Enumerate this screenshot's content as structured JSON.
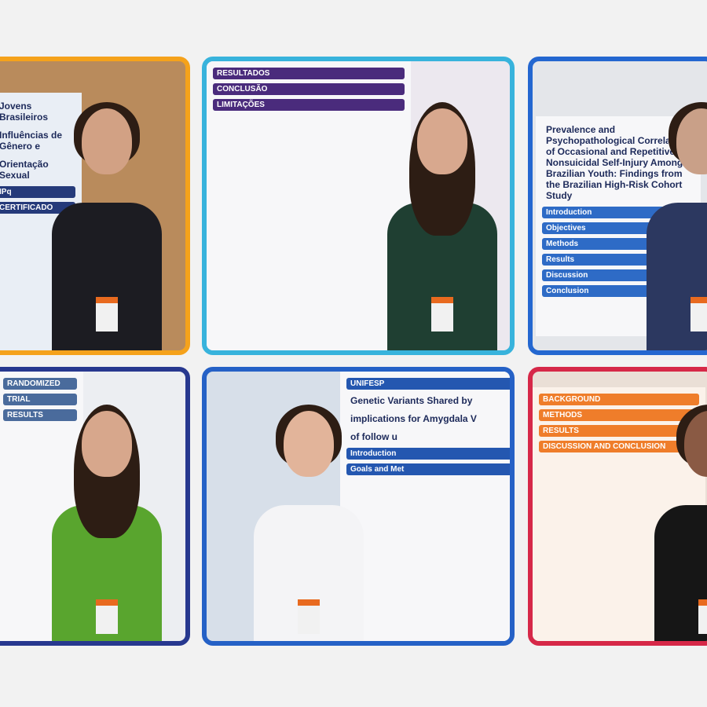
{
  "panels": [
    {
      "texts": [
        "Jovens Brasileiros",
        "Influências de Gênero e",
        "Orientação Sexual",
        "IPq",
        "CERTIFICADO"
      ]
    },
    {
      "texts": [
        "RESULTADOS",
        "CONCLUSÃO",
        "LIMITAÇÕES"
      ]
    },
    {
      "texts": [
        "Prevalence and Psychopathological Correlates of Occasional and Repetitive Nonsuicidal Self-Injury Among Brazilian Youth: Findings from the Brazilian High-Risk Cohort Study",
        "Introduction",
        "Objectives",
        "Methods",
        "Results",
        "Discussion",
        "Conclusion"
      ]
    },
    {
      "texts": [
        "RANDOMIZED",
        "TRIAL",
        "RESULTS"
      ]
    },
    {
      "texts": [
        "UNIFESP",
        "Genetic Variants Shared by",
        "implications for Amygdala V",
        "of follow u",
        "Introduction",
        "Goals and Met"
      ]
    },
    {
      "texts": [
        "BACKGROUND",
        "METHODS",
        "RESULTS",
        "DISCUSSION AND CONCLUSION"
      ]
    }
  ]
}
